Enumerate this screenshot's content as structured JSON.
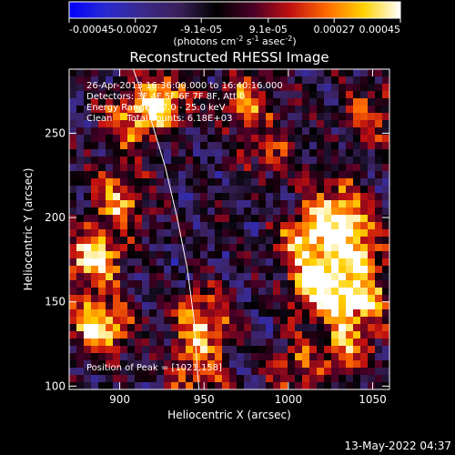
{
  "chart_data": {
    "type": "heatmap",
    "title": "Reconstructed RHESSI Image",
    "xlabel": "Heliocentric X (arcsec)",
    "ylabel": "Heliocentric Y (arcsec)",
    "xlim": [
      870,
      1060
    ],
    "ylim": [
      98,
      288
    ],
    "xticks": [
      "900",
      "950",
      "1000",
      "1050"
    ],
    "yticks": [
      "100",
      "150",
      "200",
      "250"
    ],
    "xtick_values": [
      900,
      950,
      1000,
      1050
    ],
    "ytick_values": [
      100,
      150,
      200,
      250
    ],
    "colorbar": {
      "ticks": [
        "-0.00045",
        "-0.00027",
        "-9.1e-05",
        "9.1e-05",
        "0.00027",
        "0.00045"
      ],
      "tick_values": [
        -0.00045,
        -0.00027,
        -9.1e-05,
        9.1e-05,
        0.00027,
        0.00045
      ],
      "range": [
        -0.00045,
        0.00045
      ],
      "units_main": "(photons cm",
      "units_sup1": "-2",
      "units_mid": " s",
      "units_sup2": "-1",
      "units_end": " asec",
      "units_sup3": "-2",
      "units_close": ")",
      "colormap": [
        "#0000ff",
        "#2a2ad0",
        "#3a2a8a",
        "#3a205a",
        "#000000",
        "#4a0028",
        "#c01010",
        "#ff6a00",
        "#ffd200",
        "#ffffff"
      ]
    },
    "annotations": [
      "26-Apr-2013 16:36:00.000 to 16:40:16.000",
      "Detectors: 3F 4F 5F 6F 7F 8F, Att 0",
      "Energy Range: 12.0 - 25.0 keV",
      "Clean     Total counts: 6.18E+03"
    ],
    "peak_label": "Position of Peak = [1021,158]",
    "peak": [
      1021,
      158
    ],
    "limb_curve": [
      [
        908,
        288
      ],
      [
        918,
        260
      ],
      [
        927,
        230
      ],
      [
        934,
        200
      ],
      [
        940,
        170
      ],
      [
        944,
        140
      ],
      [
        946,
        110
      ],
      [
        947,
        98
      ]
    ],
    "bright_regions": [
      {
        "x": 885,
        "y": 175,
        "w": 1.0
      },
      {
        "x": 888,
        "y": 135,
        "w": 1.0
      },
      {
        "x": 900,
        "y": 210,
        "w": 0.7
      },
      {
        "x": 905,
        "y": 255,
        "w": 0.6
      },
      {
        "x": 925,
        "y": 270,
        "w": 0.8
      },
      {
        "x": 950,
        "y": 140,
        "w": 0.8
      },
      {
        "x": 945,
        "y": 110,
        "w": 0.6
      },
      {
        "x": 975,
        "y": 270,
        "w": 0.6
      },
      {
        "x": 1010,
        "y": 185,
        "w": 0.8
      },
      {
        "x": 1020,
        "y": 158,
        "w": 1.0
      },
      {
        "x": 1030,
        "y": 205,
        "w": 0.9
      },
      {
        "x": 1040,
        "y": 180,
        "w": 0.8
      },
      {
        "x": 1045,
        "y": 150,
        "w": 0.7
      },
      {
        "x": 1035,
        "y": 125,
        "w": 0.6
      },
      {
        "x": 1005,
        "y": 110,
        "w": 0.5
      },
      {
        "x": 1050,
        "y": 260,
        "w": 0.5
      },
      {
        "x": 990,
        "y": 240,
        "w": 0.4
      }
    ]
  },
  "footer": {
    "timestamp": "13-May-2022 04:37"
  }
}
